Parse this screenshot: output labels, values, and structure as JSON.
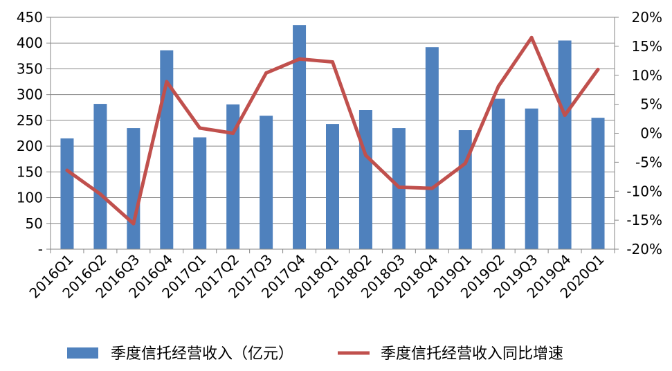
{
  "chart_data": {
    "type": "bar+line",
    "categories": [
      "2016Q1",
      "2016Q2",
      "2016Q3",
      "2016Q4",
      "2017Q1",
      "2017Q2",
      "2017Q3",
      "2017Q4",
      "2018Q1",
      "2018Q2",
      "2018Q3",
      "2018Q4",
      "2019Q1",
      "2019Q2",
      "2019Q3",
      "2019Q4",
      "2020Q1"
    ],
    "series": [
      {
        "name": "季度信托经营收入（亿元）",
        "type": "bar",
        "axis": "left",
        "color": "#4F81BD",
        "values": [
          215,
          282,
          235,
          386,
          217,
          281,
          259,
          435,
          243,
          270,
          235,
          392,
          231,
          292,
          273,
          405,
          255
        ]
      },
      {
        "name": "季度信托经营收入同比增速",
        "type": "line",
        "axis": "right",
        "color": "#C0504D",
        "values": [
          -6.4,
          -10.5,
          -15.6,
          8.9,
          0.9,
          0.0,
          10.4,
          12.8,
          12.3,
          -3.8,
          -9.3,
          -9.5,
          -5.2,
          8.1,
          16.5,
          3.1,
          11.0
        ]
      }
    ],
    "left_axis": {
      "ylim": [
        0,
        450
      ],
      "ticks": [
        0,
        50,
        100,
        150,
        200,
        250,
        300,
        350,
        400,
        450
      ],
      "tick_labels": [
        "-",
        "50",
        "100",
        "150",
        "200",
        "250",
        "300",
        "350",
        "400",
        "450"
      ]
    },
    "right_axis": {
      "ylim": [
        -20,
        20
      ],
      "ticks": [
        -20,
        -15,
        -10,
        -5,
        0,
        5,
        10,
        15,
        20
      ],
      "tick_labels": [
        "-20%",
        "-15%",
        "-10%",
        "-5%",
        "0%",
        "5%",
        "10%",
        "15%",
        "20%"
      ]
    },
    "grid": "horizontal",
    "legend_position": "bottom",
    "title": "",
    "xlabel": "",
    "ylabel": ""
  }
}
